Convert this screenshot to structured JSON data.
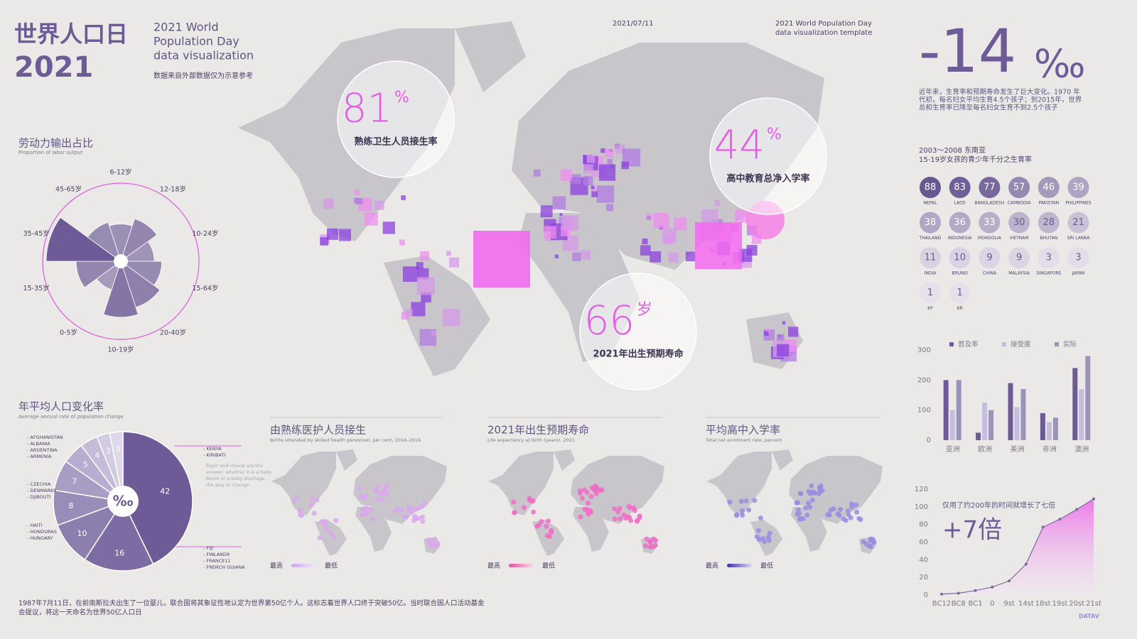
{
  "header": {
    "title": "世界人口日",
    "year": "2021",
    "en_lines": [
      "2021 World",
      "Population Day",
      "data visualization"
    ],
    "source": "数据来自外部数据仅为示意参考",
    "date": "2021/07/11",
    "template_lines": [
      "2021 World Population Day",
      "data visualization template"
    ]
  },
  "callouts": [
    {
      "value": "81",
      "unit": "%",
      "label": "熟练卫生人员接生率"
    },
    {
      "value": "44",
      "unit": "%",
      "label": "高中教育总净入学率"
    },
    {
      "value": "66",
      "unit": "岁",
      "label": "2021年出生预期寿命"
    }
  ],
  "stat": {
    "value": "-14",
    "unit": "‰",
    "lines": [
      "近年来，生育率和预期寿命发生了巨大变化。1970 年",
      "代初，每名妇女平均生育4.5个孩子；到2015年，世界",
      "总和生育率已降至每名妇女生育不到2.5个孩子"
    ]
  },
  "fertility": {
    "title": "2003～2008 东南亚",
    "subtitle": "15-19岁女孩的青少年千分之生育率",
    "countries": [
      "NEPAL",
      "LAOS",
      "BANGLADESH",
      "CAMBODIA",
      "PAKISTAN",
      "PHILIPPINES",
      "THAILAND",
      "INDONESIA",
      "MONGOLIA",
      "VIETNAM",
      "BHUTAN",
      "SRI LANKA",
      "INDIA",
      "BRUNEI",
      "CHINA",
      "MALAYSIA",
      "SINGAPORE",
      "JAPAN",
      "KP",
      "KR"
    ],
    "values": [
      88,
      83,
      77,
      57,
      46,
      39,
      38,
      36,
      33,
      30,
      28,
      21,
      11,
      10,
      9,
      9,
      3,
      3,
      1,
      1
    ]
  },
  "maps": [
    {
      "title": "由熟练医护人员接生",
      "subtitle": "Births attended by skilled health personnel, per cent, 2014–2019",
      "legend_high": "最高",
      "legend_low": "最低"
    },
    {
      "title": "2021年出生预期寿命",
      "subtitle": "Life expectancy at birth (years), 2021",
      "legend_high": "最高",
      "legend_low": "最低"
    },
    {
      "title": "平均高中入学率",
      "subtitle": "Total net enrolment rate, percent",
      "legend_high": "最高",
      "legend_low": "最低"
    }
  ],
  "footer": [
    "1987年7月11日，在前南斯拉夫出生了一位婴儿，联合国将其象征性地认定为世界第50亿个人。这标志着世界人口终于突破50亿。当时联合国人口活动基金",
    "会提议，将这一天命名为世界50亿人口日"
  ],
  "logo": "DATAV",
  "chart_data": [
    {
      "type": "rose",
      "title": "劳动力输出占比",
      "subtitle": "Proportion of labor output",
      "color": "#6d5a96",
      "categories": [
        "6-12岁",
        "12-18岁",
        "10-24岁",
        "15-64岁",
        "20-40岁",
        "10-19岁",
        "0-5岁",
        "15-35岁",
        "35-45岁",
        "45-65岁"
      ],
      "values": [
        50,
        60,
        45,
        55,
        65,
        75,
        40,
        60,
        100,
        55
      ]
    },
    {
      "type": "pie",
      "title": "年平均人口变化率",
      "subtitle": "Average annual rate of population change",
      "center_label": "‰",
      "values": [
        42,
        16,
        10,
        8,
        7,
        5,
        4,
        3,
        3
      ],
      "colors": [
        "#6d5a96",
        "#7d6ca3",
        "#8c7eae",
        "#998cb8",
        "#a89dc3",
        "#b6add0",
        "#c4bcd9",
        "#d2cce3",
        "#ddd8ea"
      ],
      "notes_left": [
        [
          "- AFGHANISTAN",
          "- ALBANIA",
          "- ARGENTINA",
          "- ARMENIA"
        ],
        [
          "- CZECHIA",
          "- DENMARK8",
          "- DJIBOUTI"
        ],
        [
          "- HAITI",
          "- HONDURAS",
          "- HUNGARY"
        ]
      ],
      "notes_right": [
        [
          "- KENYA",
          "- KIRIBATI"
        ],
        [
          "- FIJI",
          "- FINLAND9",
          "- FRANCE11",
          "- FRENCH GUIANA"
        ]
      ],
      "annotation": [
        "Right and choice are the",
        "answer: whether it is a baby",
        "boom or a baby shortage,",
        "the way to change"
      ]
    },
    {
      "type": "bar",
      "categories": [
        "亚洲",
        "欧洲",
        "美洲",
        "非洲",
        "澳洲"
      ],
      "ylim": [
        0,
        300
      ],
      "yticks": [
        0,
        100,
        200,
        300
      ],
      "series": [
        {
          "name": "普及率",
          "color": "#6d5a96",
          "values": [
            200,
            25,
            190,
            90,
            240
          ]
        },
        {
          "name": "接受度",
          "color": "#c4bde0",
          "values": [
            100,
            125,
            110,
            60,
            170
          ]
        },
        {
          "name": "实际",
          "color": "#9d92ba",
          "values": [
            200,
            100,
            170,
            75,
            280
          ]
        }
      ]
    },
    {
      "type": "area",
      "title": "仅用了约200年的时间就增长了七倍",
      "annotation": "+7倍",
      "color": "#7a6aa0",
      "categories": [
        "BC12",
        "BC8",
        "BC1",
        "0",
        "9st",
        "14st",
        "18st",
        "19st",
        "20st",
        "21st"
      ],
      "values": [
        1,
        2,
        5,
        9,
        16,
        35,
        77,
        86,
        97,
        109
      ],
      "ylim": [
        0,
        120
      ],
      "yticks": [
        0,
        20,
        40,
        60,
        80,
        100,
        120
      ]
    }
  ]
}
